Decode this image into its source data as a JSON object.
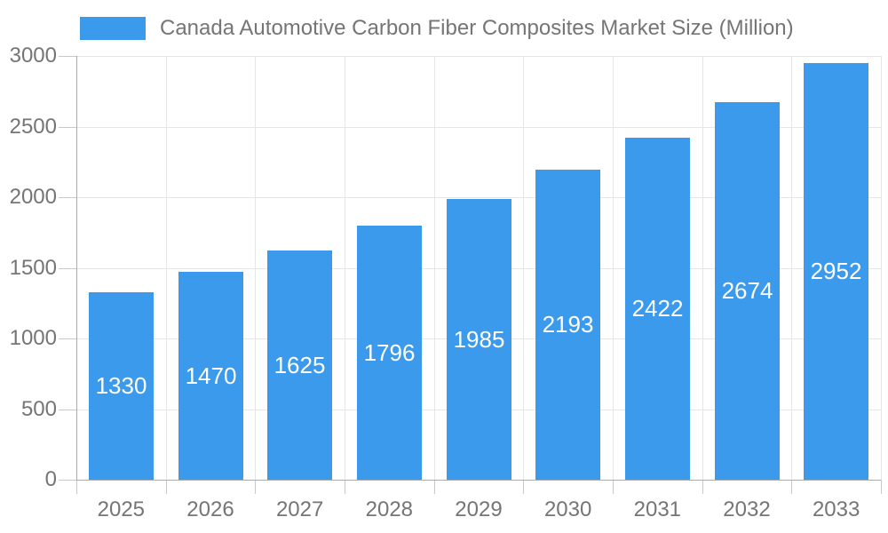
{
  "legend": {
    "label": "Canada Automotive Carbon Fiber Composites Market Size (Million)"
  },
  "colors": {
    "bar": "#3c9aec",
    "grid": "#e6e6e6",
    "axis": "#aaaaaa",
    "tick": "#c9c9c9",
    "text": "#757575",
    "value_label": "#ffffff",
    "background": "#ffffff"
  },
  "chart_data": {
    "type": "bar",
    "title": "Canada Automotive Carbon Fiber Composites Market Size (Million)",
    "categories": [
      "2025",
      "2026",
      "2027",
      "2028",
      "2029",
      "2030",
      "2031",
      "2032",
      "2033"
    ],
    "values": [
      1330,
      1470,
      1625,
      1796,
      1985,
      2193,
      2422,
      2674,
      2952
    ],
    "xlabel": "",
    "ylabel": "",
    "ylim": [
      0,
      3000
    ],
    "y_ticks": [
      0,
      500,
      1000,
      1500,
      2000,
      2500,
      3000
    ],
    "grid": true,
    "legend_position": "top-left",
    "value_labels": "inside-center"
  }
}
